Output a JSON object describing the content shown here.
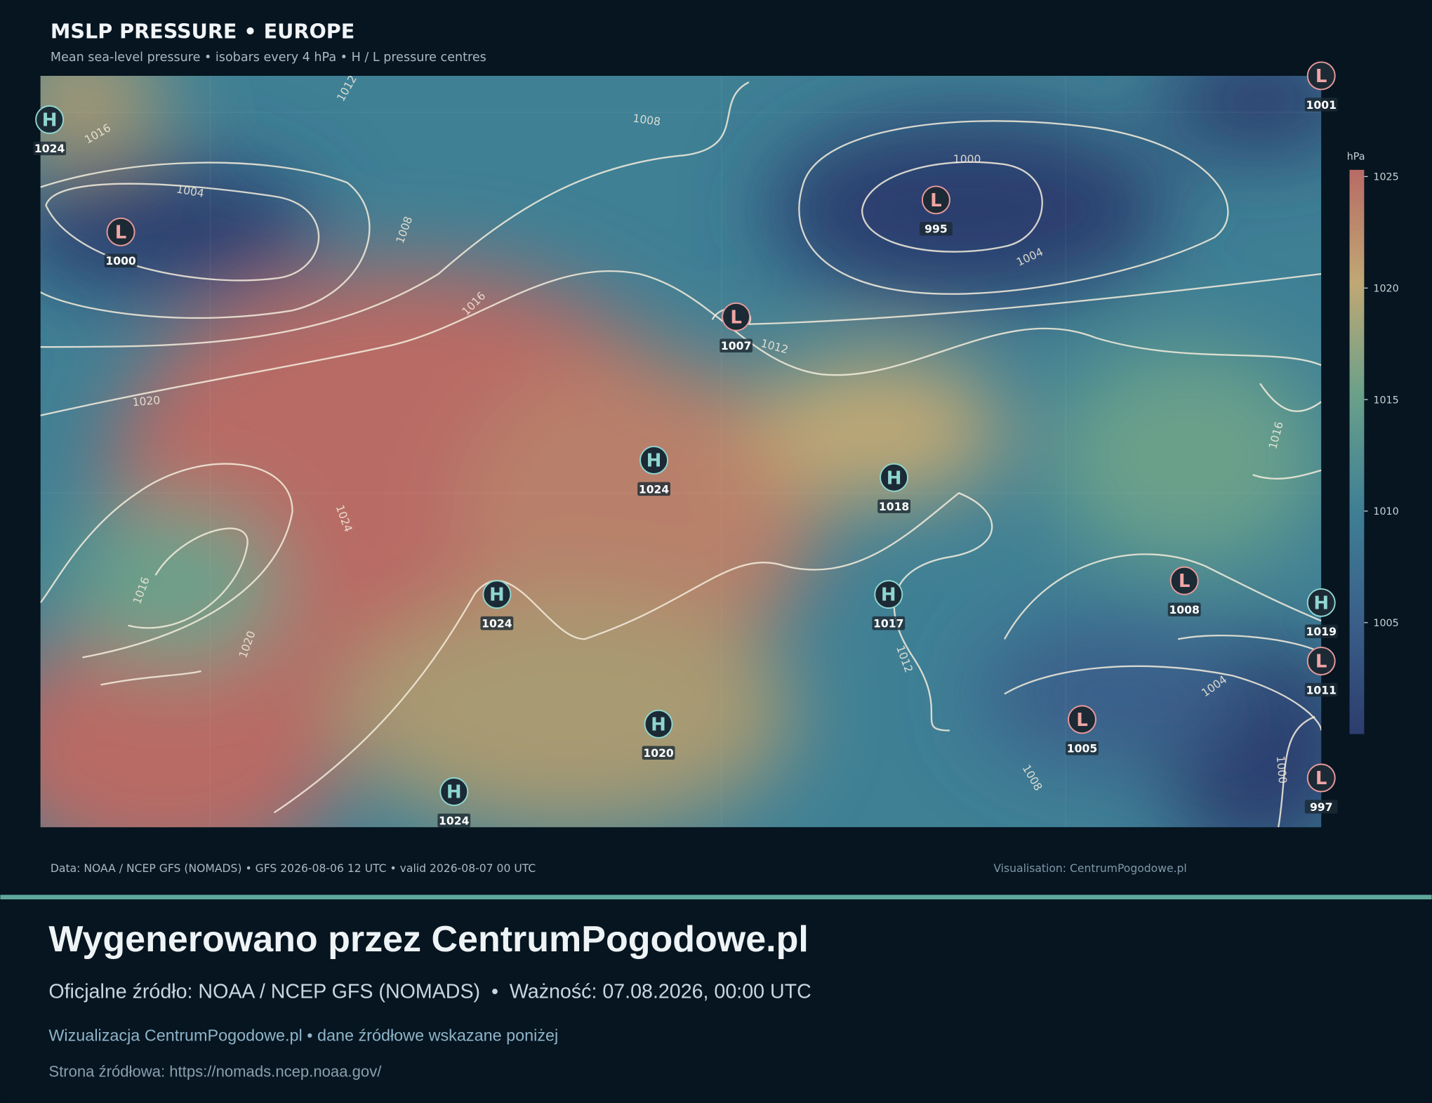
{
  "header": {
    "title": "MSLP PRESSURE • EUROPE",
    "subtitle": "Mean sea-level pressure • isobars every 4 hPa • H / L pressure centres"
  },
  "colorbar": {
    "label": "hPa",
    "lim": [
      1000,
      1025.3
    ],
    "ticks": [
      1005,
      1010,
      1015,
      1020,
      1025
    ]
  },
  "centres": [
    {
      "type": "H",
      "value": 1024
    },
    {
      "type": "L",
      "value": 1000
    },
    {
      "type": "L",
      "value": 1001
    },
    {
      "type": "L",
      "value": 995
    },
    {
      "type": "L",
      "value": 1007
    },
    {
      "type": "H",
      "value": 1024
    },
    {
      "type": "H",
      "value": 1018
    },
    {
      "type": "H",
      "value": 1024
    },
    {
      "type": "H",
      "value": 1017
    },
    {
      "type": "L",
      "value": 1008
    },
    {
      "type": "H",
      "value": 1019
    },
    {
      "type": "L",
      "value": 1011
    },
    {
      "type": "L",
      "value": 1005
    },
    {
      "type": "H",
      "value": 1020
    },
    {
      "type": "L",
      "value": 997
    },
    {
      "type": "H",
      "value": 1024
    }
  ],
  "isobar_labels": [
    1012,
    1016,
    1008,
    1004,
    1008,
    1000,
    1004,
    1016,
    1012,
    1020,
    1024,
    1016,
    1020,
    1012,
    1004,
    1016,
    1008,
    1000
  ],
  "footer": {
    "data_source": "Data: NOAA / NCEP GFS (NOMADS) • GFS 2026-08-06 12 UTC • valid 2026-08-07 00 UTC",
    "credit": "Visualisation: CentrumPogodowe.pl"
  },
  "banner": {
    "headline": "Wygenerowano przez CentrumPogodowe.pl",
    "source_line": "Oficjalne źródło: NOAA / NCEP GFS (NOMADS)  •  Ważność: 07.08.2026, 00:00 UTC",
    "note": "Wizualizacja CentrumPogodowe.pl • dane źródłowe wskazane poniżej",
    "url": "Strona źródłowa: https://nomads.ncep.noaa.gov/"
  }
}
